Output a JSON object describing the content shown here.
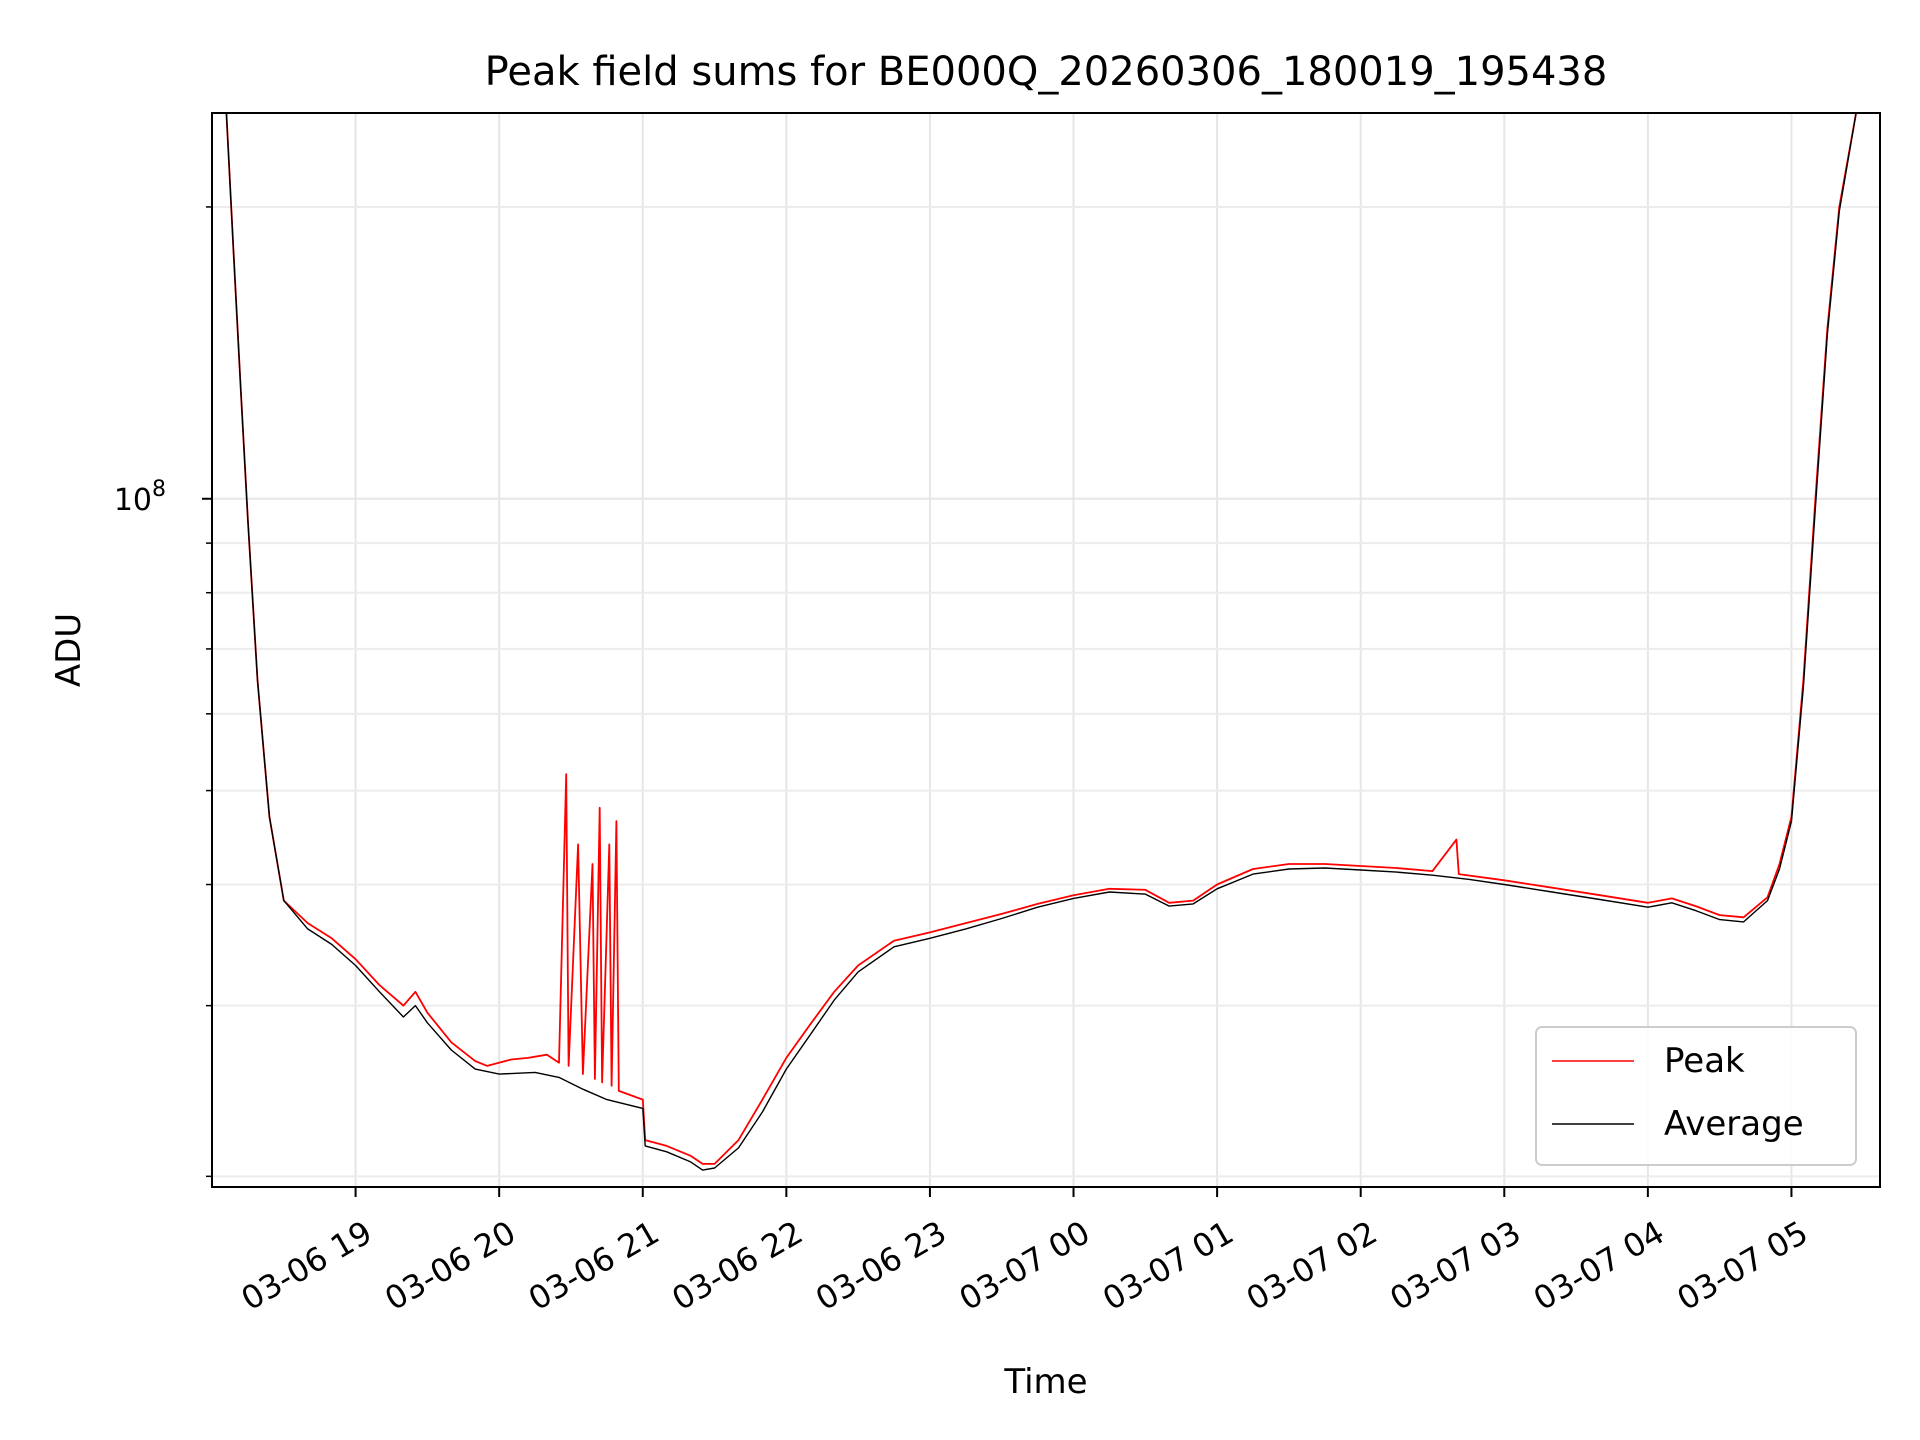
{
  "chart_data": {
    "type": "line",
    "title": "Peak field sums for BE000Q_20260306_180019_195438",
    "xlabel": "Time",
    "ylabel": "ADU",
    "y_scale": "log",
    "y_major_tick_value": 100000000,
    "y_major_tick_label": {
      "base": "10",
      "exp": "8"
    },
    "y_minor_tick_values": [
      20000000,
      30000000,
      40000000,
      50000000,
      60000000,
      70000000,
      80000000,
      90000000,
      200000000
    ],
    "ylim": [
      19500000,
      250000000
    ],
    "xlim": [
      "2026-03-06T18:00:00",
      "2026-03-07T05:37:00"
    ],
    "x_ticks": [
      {
        "value": "2026-03-06T19:00",
        "label": "03-06 19"
      },
      {
        "value": "2026-03-06T20:00",
        "label": "03-06 20"
      },
      {
        "value": "2026-03-06T21:00",
        "label": "03-06 21"
      },
      {
        "value": "2026-03-06T22:00",
        "label": "03-06 22"
      },
      {
        "value": "2026-03-06T23:00",
        "label": "03-06 23"
      },
      {
        "value": "2026-03-07T00:00",
        "label": "03-07 00"
      },
      {
        "value": "2026-03-07T01:00",
        "label": "03-07 01"
      },
      {
        "value": "2026-03-07T02:00",
        "label": "03-07 02"
      },
      {
        "value": "2026-03-07T03:00",
        "label": "03-07 03"
      },
      {
        "value": "2026-03-07T04:00",
        "label": "03-07 04"
      },
      {
        "value": "2026-03-07T05:00",
        "label": "03-07 05"
      }
    ],
    "grid": true,
    "legend_position": "lower-right",
    "series": [
      {
        "name": "Peak",
        "color": "#ff0000",
        "points": [
          [
            "2026-03-06T18:06",
            250000000
          ],
          [
            "2026-03-06T18:09",
            180000000
          ],
          [
            "2026-03-06T18:12",
            130000000
          ],
          [
            "2026-03-06T18:15",
            95000000
          ],
          [
            "2026-03-06T18:19",
            65000000
          ],
          [
            "2026-03-06T18:24",
            47000000
          ],
          [
            "2026-03-06T18:30",
            38500000
          ],
          [
            "2026-03-06T18:40",
            36500000
          ],
          [
            "2026-03-06T18:50",
            35200000
          ],
          [
            "2026-03-06T19:00",
            33500000
          ],
          [
            "2026-03-06T19:10",
            31500000
          ],
          [
            "2026-03-06T19:20",
            30000000
          ],
          [
            "2026-03-06T19:25",
            31000000
          ],
          [
            "2026-03-06T19:30",
            29500000
          ],
          [
            "2026-03-06T19:40",
            27500000
          ],
          [
            "2026-03-06T19:50",
            26300000
          ],
          [
            "2026-03-06T19:55",
            26000000
          ],
          [
            "2026-03-06T20:05",
            26400000
          ],
          [
            "2026-03-06T20:12",
            26500000
          ],
          [
            "2026-03-06T20:20",
            26700000
          ],
          [
            "2026-03-06T20:25",
            26200000
          ],
          [
            "2026-03-06T20:28",
            52000000
          ],
          [
            "2026-03-06T20:29",
            26000000
          ],
          [
            "2026-03-06T20:33",
            44000000
          ],
          [
            "2026-03-06T20:35",
            25500000
          ],
          [
            "2026-03-06T20:39",
            42000000
          ],
          [
            "2026-03-06T20:40",
            25200000
          ],
          [
            "2026-03-06T20:42",
            48000000
          ],
          [
            "2026-03-06T20:43",
            25000000
          ],
          [
            "2026-03-06T20:46",
            44000000
          ],
          [
            "2026-03-06T20:47",
            24800000
          ],
          [
            "2026-03-06T20:49",
            46500000
          ],
          [
            "2026-03-06T20:50",
            24500000
          ],
          [
            "2026-03-06T21:00",
            24000000
          ],
          [
            "2026-03-06T21:01",
            21800000
          ],
          [
            "2026-03-06T21:10",
            21500000
          ],
          [
            "2026-03-06T21:20",
            21000000
          ],
          [
            "2026-03-06T21:25",
            20600000
          ],
          [
            "2026-03-06T21:30",
            20600000
          ],
          [
            "2026-03-06T21:40",
            21800000
          ],
          [
            "2026-03-06T21:50",
            24000000
          ],
          [
            "2026-03-06T22:00",
            26500000
          ],
          [
            "2026-03-06T22:10",
            28700000
          ],
          [
            "2026-03-06T22:20",
            31000000
          ],
          [
            "2026-03-06T22:30",
            33000000
          ],
          [
            "2026-03-06T22:45",
            35000000
          ],
          [
            "2026-03-06T23:00",
            35700000
          ],
          [
            "2026-03-06T23:15",
            36500000
          ],
          [
            "2026-03-06T23:30",
            37300000
          ],
          [
            "2026-03-06T23:45",
            38200000
          ],
          [
            "2026-03-07T00:00",
            39000000
          ],
          [
            "2026-03-07T00:15",
            39600000
          ],
          [
            "2026-03-07T00:30",
            39500000
          ],
          [
            "2026-03-07T00:40",
            38300000
          ],
          [
            "2026-03-07T00:50",
            38500000
          ],
          [
            "2026-03-07T01:00",
            40000000
          ],
          [
            "2026-03-07T01:15",
            41500000
          ],
          [
            "2026-03-07T01:30",
            42000000
          ],
          [
            "2026-03-07T01:45",
            42000000
          ],
          [
            "2026-03-07T02:00",
            41800000
          ],
          [
            "2026-03-07T02:15",
            41600000
          ],
          [
            "2026-03-07T02:30",
            41300000
          ],
          [
            "2026-03-07T02:40",
            44500000
          ],
          [
            "2026-03-07T02:41",
            41000000
          ],
          [
            "2026-03-07T03:00",
            40400000
          ],
          [
            "2026-03-07T03:20",
            39700000
          ],
          [
            "2026-03-07T03:40",
            39000000
          ],
          [
            "2026-03-07T04:00",
            38300000
          ],
          [
            "2026-03-07T04:10",
            38700000
          ],
          [
            "2026-03-07T04:20",
            38000000
          ],
          [
            "2026-03-07T04:30",
            37200000
          ],
          [
            "2026-03-07T04:40",
            37000000
          ],
          [
            "2026-03-07T04:50",
            38800000
          ],
          [
            "2026-03-07T04:55",
            42000000
          ],
          [
            "2026-03-07T05:00",
            47000000
          ],
          [
            "2026-03-07T05:05",
            65000000
          ],
          [
            "2026-03-07T05:10",
            100000000
          ],
          [
            "2026-03-07T05:15",
            150000000
          ],
          [
            "2026-03-07T05:20",
            200000000
          ],
          [
            "2026-03-07T05:27",
            250000000
          ]
        ]
      },
      {
        "name": "Average",
        "color": "#000000",
        "points": [
          [
            "2026-03-06T18:06",
            250000000
          ],
          [
            "2026-03-06T18:09",
            180000000
          ],
          [
            "2026-03-06T18:12",
            130000000
          ],
          [
            "2026-03-06T18:15",
            95000000
          ],
          [
            "2026-03-06T18:19",
            65000000
          ],
          [
            "2026-03-06T18:24",
            47000000
          ],
          [
            "2026-03-06T18:30",
            38500000
          ],
          [
            "2026-03-06T18:40",
            36000000
          ],
          [
            "2026-03-06T18:50",
            34700000
          ],
          [
            "2026-03-06T19:00",
            33000000
          ],
          [
            "2026-03-06T19:10",
            31000000
          ],
          [
            "2026-03-06T19:20",
            29200000
          ],
          [
            "2026-03-06T19:25",
            30000000
          ],
          [
            "2026-03-06T19:30",
            28800000
          ],
          [
            "2026-03-06T19:40",
            27000000
          ],
          [
            "2026-03-06T19:50",
            25800000
          ],
          [
            "2026-03-06T20:00",
            25500000
          ],
          [
            "2026-03-06T20:15",
            25600000
          ],
          [
            "2026-03-06T20:25",
            25300000
          ],
          [
            "2026-03-06T20:35",
            24600000
          ],
          [
            "2026-03-06T20:45",
            24000000
          ],
          [
            "2026-03-06T21:00",
            23500000
          ],
          [
            "2026-03-06T21:01",
            21500000
          ],
          [
            "2026-03-06T21:10",
            21200000
          ],
          [
            "2026-03-06T21:20",
            20700000
          ],
          [
            "2026-03-06T21:25",
            20300000
          ],
          [
            "2026-03-06T21:30",
            20400000
          ],
          [
            "2026-03-06T21:40",
            21400000
          ],
          [
            "2026-03-06T21:50",
            23300000
          ],
          [
            "2026-03-06T22:00",
            25800000
          ],
          [
            "2026-03-06T22:10",
            28000000
          ],
          [
            "2026-03-06T22:20",
            30400000
          ],
          [
            "2026-03-06T22:30",
            32500000
          ],
          [
            "2026-03-06T22:45",
            34500000
          ],
          [
            "2026-03-06T23:00",
            35200000
          ],
          [
            "2026-03-06T23:15",
            36000000
          ],
          [
            "2026-03-06T23:30",
            36900000
          ],
          [
            "2026-03-06T23:45",
            37900000
          ],
          [
            "2026-03-07T00:00",
            38700000
          ],
          [
            "2026-03-07T00:15",
            39300000
          ],
          [
            "2026-03-07T00:30",
            39100000
          ],
          [
            "2026-03-07T00:40",
            38000000
          ],
          [
            "2026-03-07T00:50",
            38200000
          ],
          [
            "2026-03-07T01:00",
            39600000
          ],
          [
            "2026-03-07T01:15",
            41000000
          ],
          [
            "2026-03-07T01:30",
            41500000
          ],
          [
            "2026-03-07T01:45",
            41600000
          ],
          [
            "2026-03-07T02:00",
            41400000
          ],
          [
            "2026-03-07T02:15",
            41200000
          ],
          [
            "2026-03-07T02:30",
            40900000
          ],
          [
            "2026-03-07T02:45",
            40500000
          ],
          [
            "2026-03-07T03:00",
            40000000
          ],
          [
            "2026-03-07T03:20",
            39300000
          ],
          [
            "2026-03-07T03:40",
            38600000
          ],
          [
            "2026-03-07T04:00",
            37900000
          ],
          [
            "2026-03-07T04:10",
            38300000
          ],
          [
            "2026-03-07T04:20",
            37600000
          ],
          [
            "2026-03-07T04:30",
            36800000
          ],
          [
            "2026-03-07T04:40",
            36600000
          ],
          [
            "2026-03-07T04:50",
            38500000
          ],
          [
            "2026-03-07T04:55",
            41500000
          ],
          [
            "2026-03-07T05:00",
            46500000
          ],
          [
            "2026-03-07T05:05",
            64000000
          ],
          [
            "2026-03-07T05:10",
            98000000
          ],
          [
            "2026-03-07T05:15",
            148000000
          ],
          [
            "2026-03-07T05:20",
            198000000
          ],
          [
            "2026-03-07T05:27",
            250000000
          ]
        ]
      }
    ]
  }
}
